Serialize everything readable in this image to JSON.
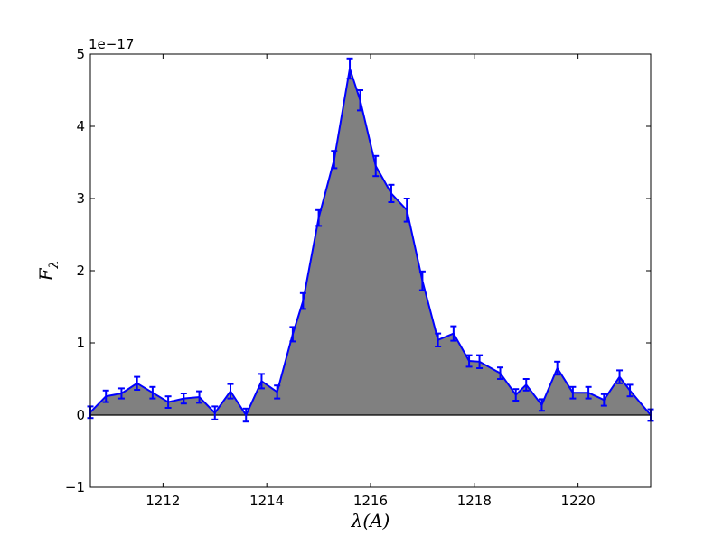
{
  "chart_data": {
    "type": "area",
    "title": "",
    "xlabel_main": "λ",
    "xlabel_rest": "(A)",
    "ylabel_main": "F",
    "ylabel_sub": "λ",
    "offset_text": "1e−17",
    "xlim": [
      1210.6,
      1221.4
    ],
    "ylim": [
      -1,
      5
    ],
    "xticks": [
      1212,
      1214,
      1216,
      1218,
      1220
    ],
    "yticks": [
      -1,
      0,
      1,
      2,
      3,
      4,
      5
    ],
    "grid": false,
    "fill_color": "#808080",
    "line_color": "#0000ff",
    "zero_line_color": "#000000",
    "series": [
      {
        "x": [
          1210.6,
          1210.9,
          1211.2,
          1211.5,
          1211.8,
          1212.1,
          1212.4,
          1212.7,
          1213.0,
          1213.3,
          1213.6,
          1213.9,
          1214.2,
          1214.5,
          1214.7,
          1215.0,
          1215.3,
          1215.6,
          1215.8,
          1216.1,
          1216.4,
          1216.7,
          1217.0,
          1217.3,
          1217.6,
          1217.9,
          1218.1,
          1218.5,
          1218.8,
          1219.0,
          1219.3,
          1219.6,
          1219.9,
          1220.2,
          1220.5,
          1220.8,
          1221.0,
          1221.4
        ],
        "y": [
          0.04,
          0.26,
          0.3,
          0.44,
          0.31,
          0.18,
          0.23,
          0.25,
          0.03,
          0.33,
          0.0,
          0.47,
          0.32,
          1.12,
          1.58,
          2.73,
          3.54,
          4.8,
          4.36,
          3.45,
          3.07,
          2.84,
          1.86,
          1.04,
          1.13,
          0.75,
          0.74,
          0.58,
          0.28,
          0.42,
          0.14,
          0.65,
          0.31,
          0.31,
          0.21,
          0.53,
          0.34,
          0.0
        ],
        "yerr": [
          0.08,
          0.08,
          0.07,
          0.09,
          0.08,
          0.08,
          0.07,
          0.08,
          0.09,
          0.1,
          0.09,
          0.1,
          0.09,
          0.1,
          0.11,
          0.11,
          0.12,
          0.14,
          0.14,
          0.14,
          0.12,
          0.16,
          0.13,
          0.09,
          0.1,
          0.08,
          0.09,
          0.08,
          0.08,
          0.08,
          0.08,
          0.09,
          0.08,
          0.08,
          0.08,
          0.09,
          0.08,
          0.08
        ]
      }
    ]
  }
}
